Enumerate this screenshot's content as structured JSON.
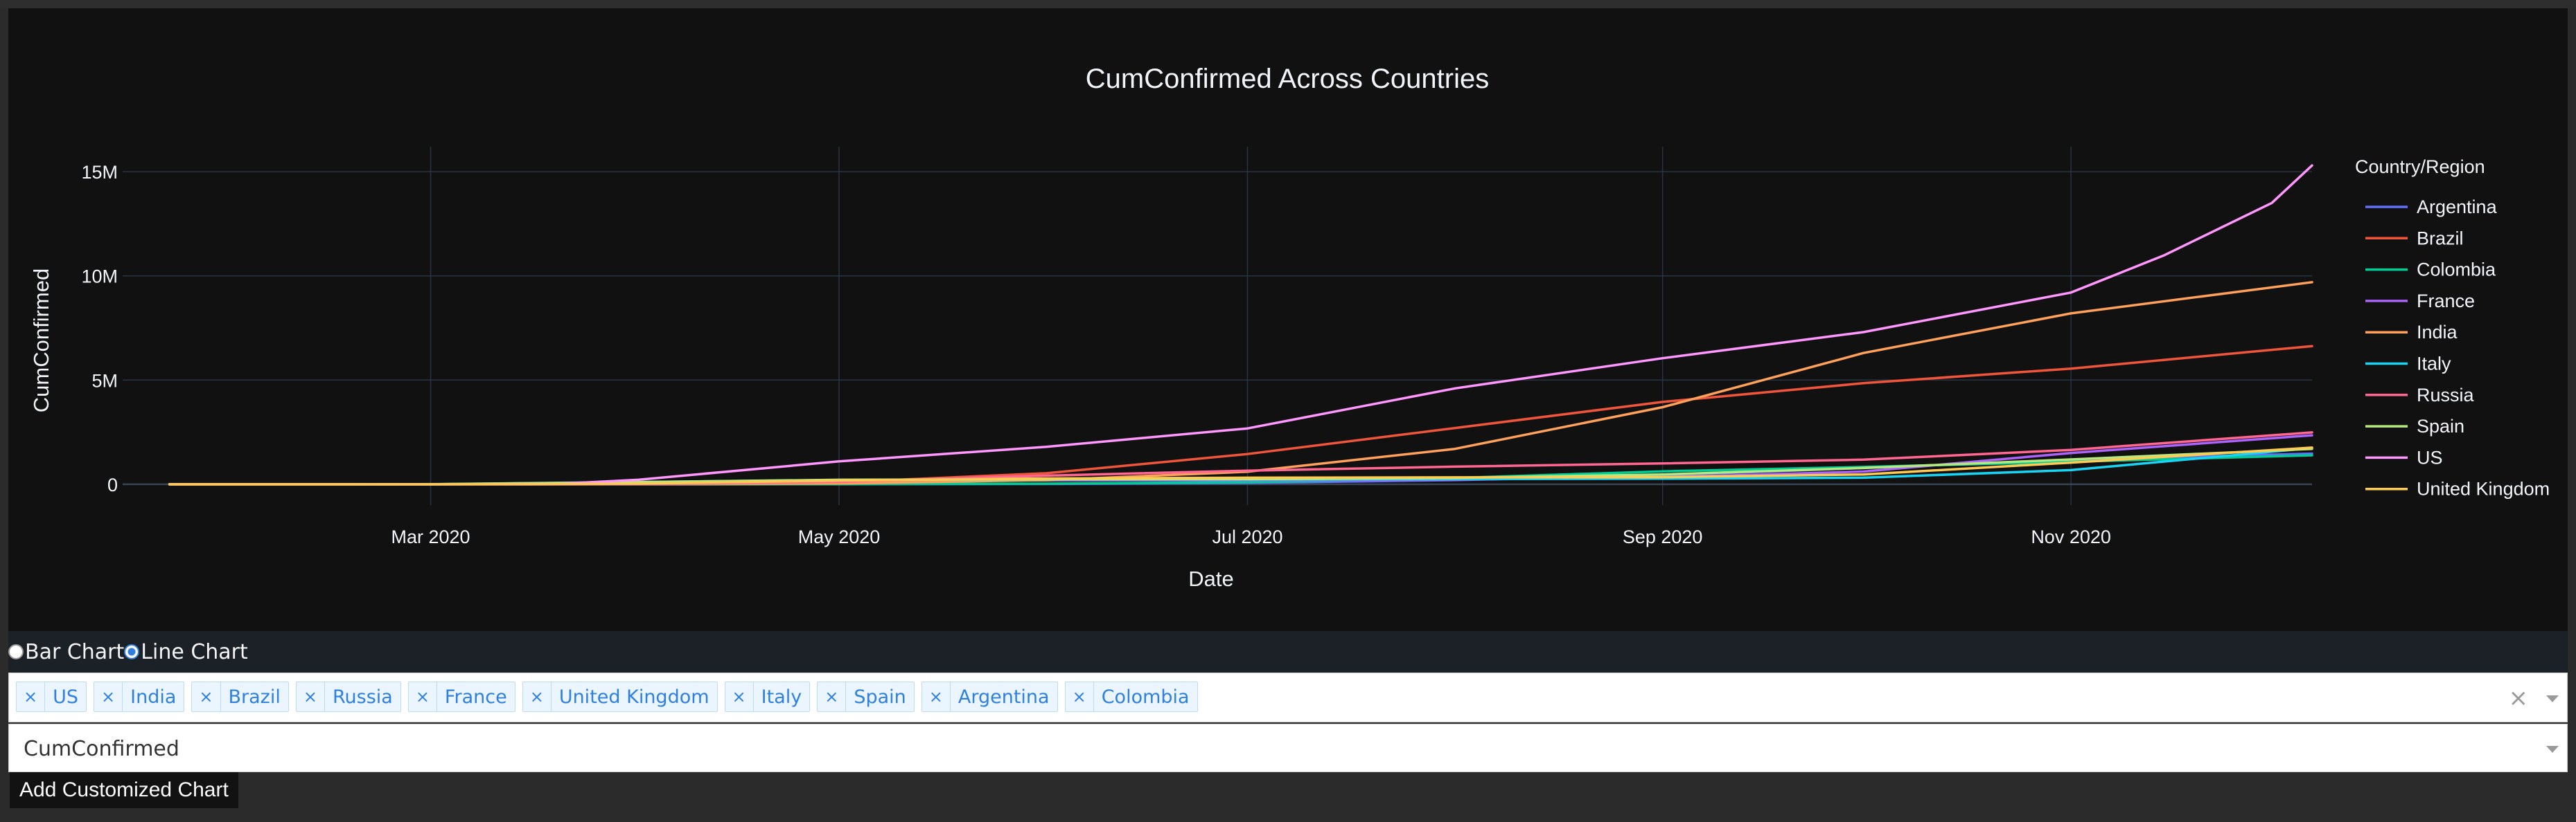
{
  "chart_data": {
    "type": "line",
    "title": "CumConfirmed Across Countries",
    "xlabel": "Date",
    "ylabel": "CumConfirmed",
    "legend_title": "Country/Region",
    "legend_position": "right",
    "grid": true,
    "x_range": [
      "2020-01-22",
      "2020-12-07"
    ],
    "xlim": [
      "2020-01-15",
      "2020-12-07"
    ],
    "ylim": [
      -1000000,
      16200000
    ],
    "x_ticks": [
      "2020-03-01",
      "2020-05-01",
      "2020-07-01",
      "2020-09-01",
      "2020-11-01"
    ],
    "x_tick_labels": [
      "Mar 2020",
      "May 2020",
      "Jul 2020",
      "Sep 2020",
      "Nov 2020"
    ],
    "y_ticks": [
      0,
      5000000,
      10000000,
      15000000
    ],
    "y_tick_labels": [
      "0",
      "5M",
      "10M",
      "15M"
    ],
    "series": [
      {
        "name": "Argentina",
        "color": "#636efa",
        "points": [
          [
            "2020-01-22",
            0
          ],
          [
            "2020-04-01",
            1000
          ],
          [
            "2020-06-01",
            17000
          ],
          [
            "2020-07-01",
            67000
          ],
          [
            "2020-08-01",
            200000
          ],
          [
            "2020-09-01",
            430000
          ],
          [
            "2020-10-01",
            780000
          ],
          [
            "2020-11-01",
            1180000
          ],
          [
            "2020-12-07",
            1470000
          ]
        ]
      },
      {
        "name": "Brazil",
        "color": "#ef553b",
        "points": [
          [
            "2020-01-22",
            0
          ],
          [
            "2020-03-15",
            200
          ],
          [
            "2020-04-01",
            6800
          ],
          [
            "2020-05-01",
            92000
          ],
          [
            "2020-06-01",
            530000
          ],
          [
            "2020-07-01",
            1450000
          ],
          [
            "2020-08-01",
            2700000
          ],
          [
            "2020-09-01",
            3950000
          ],
          [
            "2020-10-01",
            4850000
          ],
          [
            "2020-11-01",
            5550000
          ],
          [
            "2020-12-07",
            6630000
          ]
        ]
      },
      {
        "name": "Colombia",
        "color": "#00cc96",
        "points": [
          [
            "2020-01-22",
            0
          ],
          [
            "2020-04-01",
            1000
          ],
          [
            "2020-05-01",
            7000
          ],
          [
            "2020-06-01",
            30000
          ],
          [
            "2020-07-01",
            100000
          ],
          [
            "2020-08-01",
            300000
          ],
          [
            "2020-09-01",
            620000
          ],
          [
            "2020-10-01",
            830000
          ],
          [
            "2020-11-01",
            1080000
          ],
          [
            "2020-12-07",
            1390000
          ]
        ]
      },
      {
        "name": "France",
        "color": "#ab63fa",
        "points": [
          [
            "2020-01-22",
            0
          ],
          [
            "2020-03-01",
            130
          ],
          [
            "2020-04-01",
            57000
          ],
          [
            "2020-05-01",
            168000
          ],
          [
            "2020-06-01",
            189000
          ],
          [
            "2020-07-01",
            202000
          ],
          [
            "2020-08-01",
            225000
          ],
          [
            "2020-09-01",
            330000
          ],
          [
            "2020-10-01",
            610000
          ],
          [
            "2020-11-01",
            1500000
          ],
          [
            "2020-12-07",
            2350000
          ]
        ]
      },
      {
        "name": "India",
        "color": "#ffa15a",
        "points": [
          [
            "2020-01-22",
            0
          ],
          [
            "2020-04-01",
            2000
          ],
          [
            "2020-05-01",
            37000
          ],
          [
            "2020-06-01",
            200000
          ],
          [
            "2020-07-01",
            600000
          ],
          [
            "2020-08-01",
            1700000
          ],
          [
            "2020-09-01",
            3700000
          ],
          [
            "2020-10-01",
            6300000
          ],
          [
            "2020-11-01",
            8200000
          ],
          [
            "2020-12-07",
            9700000
          ]
        ]
      },
      {
        "name": "Italy",
        "color": "#19d3f3",
        "points": [
          [
            "2020-01-22",
            0
          ],
          [
            "2020-03-01",
            1700
          ],
          [
            "2020-04-01",
            110000
          ],
          [
            "2020-05-01",
            205000
          ],
          [
            "2020-06-01",
            233000
          ],
          [
            "2020-07-01",
            241000
          ],
          [
            "2020-08-01",
            248000
          ],
          [
            "2020-09-01",
            270000
          ],
          [
            "2020-10-01",
            315000
          ],
          [
            "2020-11-01",
            680000
          ],
          [
            "2020-12-07",
            1740000
          ]
        ]
      },
      {
        "name": "Russia",
        "color": "#ff6692",
        "points": [
          [
            "2020-01-22",
            0
          ],
          [
            "2020-04-01",
            2800
          ],
          [
            "2020-05-01",
            115000
          ],
          [
            "2020-06-01",
            415000
          ],
          [
            "2020-07-01",
            655000
          ],
          [
            "2020-08-01",
            845000
          ],
          [
            "2020-09-01",
            1000000
          ],
          [
            "2020-10-01",
            1180000
          ],
          [
            "2020-11-01",
            1650000
          ],
          [
            "2020-12-07",
            2490000
          ]
        ]
      },
      {
        "name": "Spain",
        "color": "#b6e880",
        "points": [
          [
            "2020-01-22",
            0
          ],
          [
            "2020-03-01",
            80
          ],
          [
            "2020-04-01",
            104000
          ],
          [
            "2020-05-01",
            215000
          ],
          [
            "2020-06-01",
            240000
          ],
          [
            "2020-07-01",
            250000
          ],
          [
            "2020-08-01",
            300000
          ],
          [
            "2020-09-01",
            470000
          ],
          [
            "2020-10-01",
            780000
          ],
          [
            "2020-11-01",
            1190000
          ],
          [
            "2020-12-07",
            1700000
          ]
        ]
      },
      {
        "name": "US",
        "color": "#ff97ff",
        "points": [
          [
            "2020-01-22",
            1
          ],
          [
            "2020-03-01",
            30
          ],
          [
            "2020-03-20",
            19000
          ],
          [
            "2020-04-01",
            215000
          ],
          [
            "2020-05-01",
            1100000
          ],
          [
            "2020-06-01",
            1800000
          ],
          [
            "2020-07-01",
            2680000
          ],
          [
            "2020-08-01",
            4600000
          ],
          [
            "2020-09-01",
            6050000
          ],
          [
            "2020-10-01",
            7300000
          ],
          [
            "2020-11-01",
            9200000
          ],
          [
            "2020-11-15",
            11000000
          ],
          [
            "2020-12-01",
            13500000
          ],
          [
            "2020-12-07",
            15300000
          ]
        ]
      },
      {
        "name": "United Kingdom",
        "color": "#fecb52",
        "points": [
          [
            "2020-01-22",
            0
          ],
          [
            "2020-03-01",
            35
          ],
          [
            "2020-04-01",
            30000
          ],
          [
            "2020-05-01",
            180000
          ],
          [
            "2020-06-01",
            280000
          ],
          [
            "2020-07-01",
            315000
          ],
          [
            "2020-08-01",
            330000
          ],
          [
            "2020-09-01",
            340000
          ],
          [
            "2020-10-01",
            470000
          ],
          [
            "2020-11-01",
            1040000
          ],
          [
            "2020-12-07",
            1760000
          ]
        ]
      }
    ]
  },
  "controls": {
    "chart_type_options": [
      "Bar Chart",
      "Line Chart"
    ],
    "chart_type_selected": "Line Chart",
    "selected_countries": [
      "US",
      "India",
      "Brazil",
      "Russia",
      "France",
      "United Kingdom",
      "Italy",
      "Spain",
      "Argentina",
      "Colombia"
    ],
    "remove_symbol": "×",
    "clear_symbol": "×",
    "metric_value": "CumConfirmed",
    "add_button_label": "Add Customized Chart"
  },
  "colors": {
    "page_background": "#2b2b2b",
    "plot_background": "#111111",
    "grid": "#283442",
    "text": "#f2f5fa",
    "tag_text": "#2f80e0",
    "tag_background": "#ebf5ff"
  }
}
